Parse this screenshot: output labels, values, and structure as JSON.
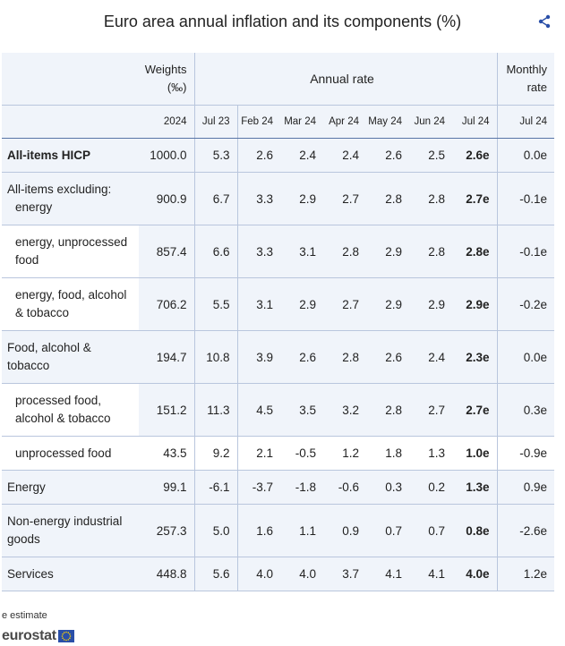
{
  "title": "Euro area annual inflation and its components (%)",
  "header": {
    "weights_line1": "Weights",
    "weights_line2": "(‰)",
    "annual_rate": "Annual rate",
    "monthly_line1": "Monthly",
    "monthly_line2": "rate",
    "subheaders": [
      "2024",
      "Jul 23",
      "Feb 24",
      "Mar 24",
      "Apr 24",
      "May 24",
      "Jun 24",
      "Jul 24",
      "Jul 24"
    ]
  },
  "rows": [
    {
      "label": "All-items HICP",
      "cells": [
        "1000.0",
        "5.3",
        "2.6",
        "2.4",
        "2.4",
        "2.6",
        "2.5",
        "2.6e",
        "0.0e"
      ]
    },
    {
      "label": "All-items excluding:",
      "label2": "energy",
      "cells": [
        "900.9",
        "6.7",
        "3.3",
        "2.9",
        "2.7",
        "2.8",
        "2.8",
        "2.7e",
        "-0.1e"
      ]
    },
    {
      "label": "energy, unprocessed",
      "label2": "food",
      "cells": [
        "857.4",
        "6.6",
        "3.3",
        "3.1",
        "2.8",
        "2.9",
        "2.8",
        "2.8e",
        "-0.1e"
      ]
    },
    {
      "label": "energy, food, alcohol",
      "label2": "& tobacco",
      "cells": [
        "706.2",
        "5.5",
        "3.1",
        "2.9",
        "2.7",
        "2.9",
        "2.9",
        "2.9e",
        "-0.2e"
      ]
    },
    {
      "label": "Food, alcohol &",
      "label2": "tobacco",
      "cells": [
        "194.7",
        "10.8",
        "3.9",
        "2.6",
        "2.8",
        "2.6",
        "2.4",
        "2.3e",
        "0.0e"
      ]
    },
    {
      "label": "processed food,",
      "label2": "alcohol & tobacco",
      "cells": [
        "151.2",
        "11.3",
        "4.5",
        "3.5",
        "3.2",
        "2.8",
        "2.7",
        "2.7e",
        "0.3e"
      ]
    },
    {
      "label": "unprocessed food",
      "cells": [
        "43.5",
        "9.2",
        "2.1",
        "-0.5",
        "1.2",
        "1.8",
        "1.3",
        "1.0e",
        "-0.9e"
      ]
    },
    {
      "label": "Energy",
      "cells": [
        "99.1",
        "-6.1",
        "-3.7",
        "-1.8",
        "-0.6",
        "0.3",
        "0.2",
        "1.3e",
        "0.9e"
      ]
    },
    {
      "label": "Non-energy industrial",
      "label2": "goods",
      "cells": [
        "257.3",
        "5.0",
        "1.6",
        "1.1",
        "0.9",
        "0.7",
        "0.7",
        "0.8e",
        "-2.6e"
      ]
    },
    {
      "label": "Services",
      "cells": [
        "448.8",
        "5.6",
        "4.0",
        "4.0",
        "3.7",
        "4.1",
        "4.1",
        "4.0e",
        "1.2e"
      ]
    }
  ],
  "footnote": "e estimate",
  "logo_text": "eurostat",
  "icons": {
    "share": "share-icon",
    "flag": "eu-flag-icon"
  },
  "colors": {
    "header_bg": "#f0f4fa",
    "border": "#b9c6dd",
    "accent_border": "#5875a6",
    "flag": "#2a4fa8"
  }
}
